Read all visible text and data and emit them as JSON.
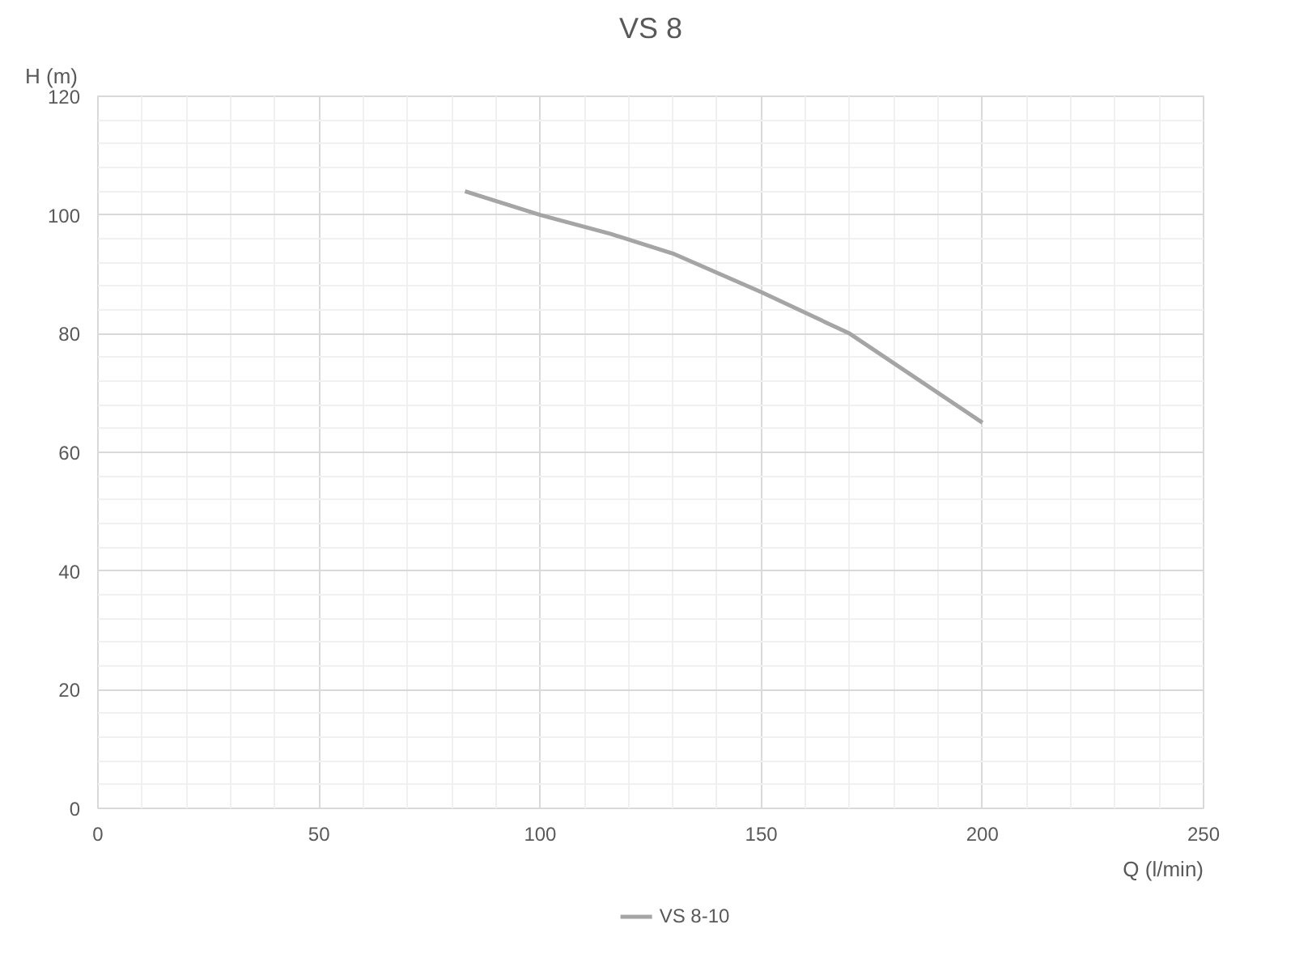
{
  "chart_data": {
    "type": "line",
    "title": "VS 8",
    "xlabel": "Q (l/min)",
    "ylabel": "H (m)",
    "xlim": [
      0,
      250
    ],
    "xticks": [
      0,
      50,
      100,
      150,
      200,
      250
    ],
    "ylim": [
      0,
      120
    ],
    "yticks": [
      0,
      20,
      40,
      60,
      80,
      100,
      120
    ],
    "grid": true,
    "legend": "bottom",
    "marker": "none",
    "line_style": "solid",
    "series": [
      {
        "name": "VS 8-10",
        "color": "#a5a5a5",
        "x": [
          83,
          100,
          116,
          130,
          150,
          170,
          200
        ],
        "values": [
          104,
          100,
          96.8,
          93.5,
          87,
          80,
          65
        ]
      }
    ]
  }
}
